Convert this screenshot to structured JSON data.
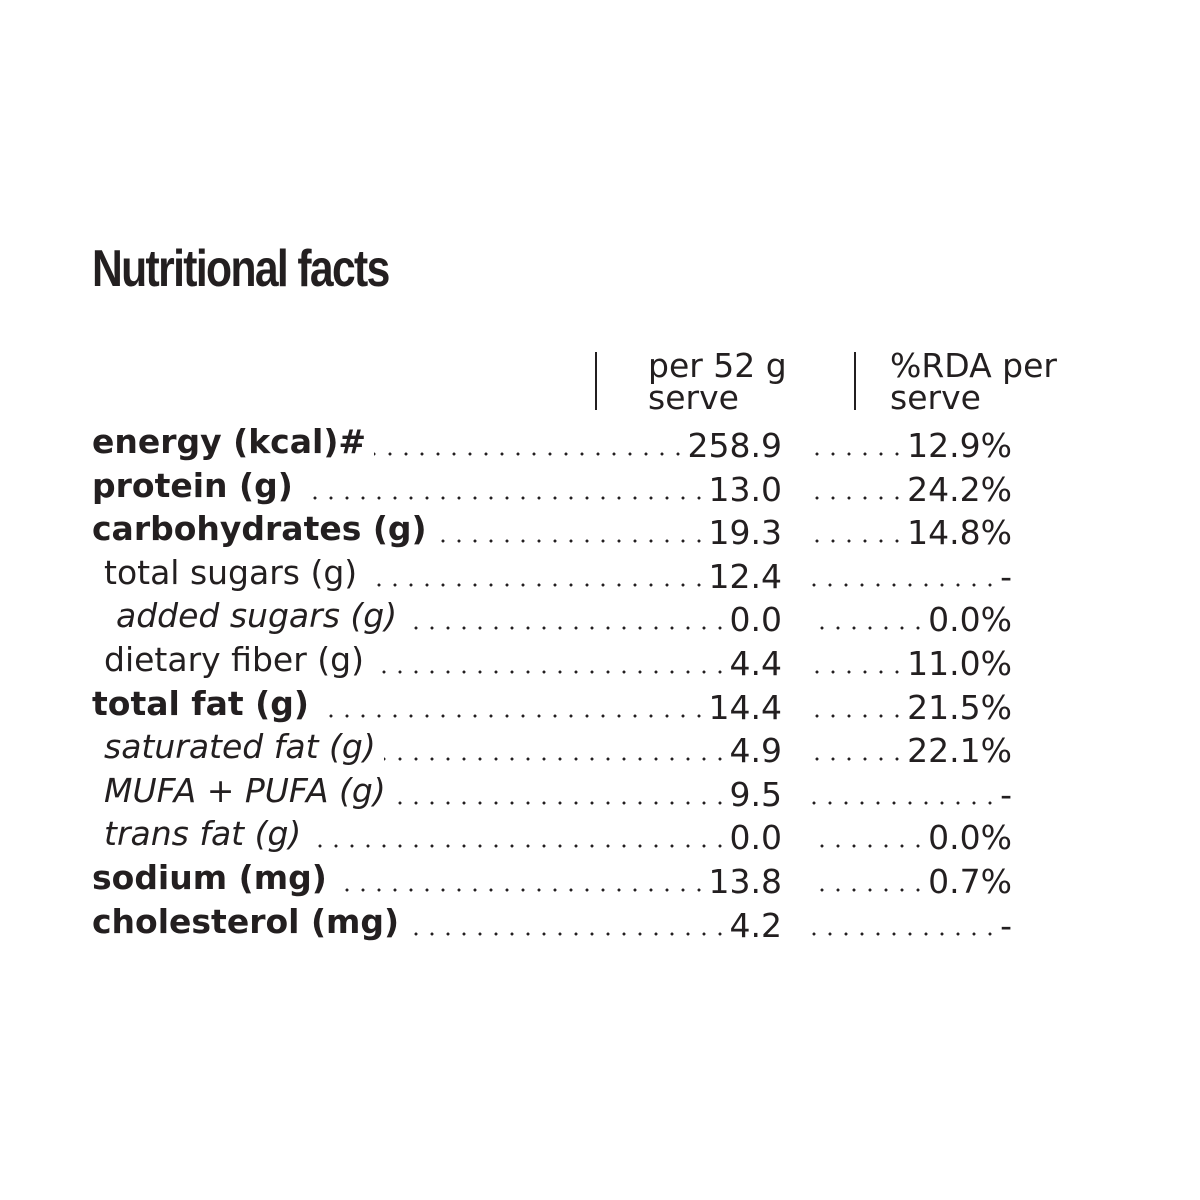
{
  "title": "Nutritional facts",
  "columns": {
    "per_serve_line1": "per 52 g",
    "per_serve_line2": "serve",
    "rda_line1": "%RDA per",
    "rda_line2": "serve"
  },
  "rows": [
    {
      "label": "energy (kcal)#",
      "style": "bold",
      "level": 0,
      "per_serve": "258.9",
      "rda": "12.9%"
    },
    {
      "label": "protein (g)",
      "style": "bold",
      "level": 0,
      "per_serve": "13.0",
      "rda": "24.2%"
    },
    {
      "label": "carbohydrates (g)",
      "style": "bold",
      "level": 0,
      "per_serve": "19.3",
      "rda": "14.8%"
    },
    {
      "label": "total sugars (g)",
      "style": "normal",
      "level": 1,
      "per_serve": "12.4",
      "rda": "-"
    },
    {
      "label": "added sugars (g)",
      "style": "italic",
      "level": 2,
      "per_serve": "0.0",
      "rda": "0.0%"
    },
    {
      "label": "dietary fiber (g)",
      "style": "normal",
      "level": 1,
      "per_serve": "4.4",
      "rda": "11.0%"
    },
    {
      "label": "total fat (g)",
      "style": "bold",
      "level": 0,
      "per_serve": "14.4",
      "rda": "21.5%"
    },
    {
      "label": "saturated fat (g)",
      "style": "italic",
      "level": 1,
      "per_serve": "4.9",
      "rda": "22.1%"
    },
    {
      "label": "MUFA + PUFA (g)",
      "style": "italic",
      "level": 1,
      "per_serve": "9.5",
      "rda": "-"
    },
    {
      "label": "trans fat (g)",
      "style": "italic",
      "level": 1,
      "per_serve": "0.0",
      "rda": "0.0%"
    },
    {
      "label": "sodium (mg)",
      "style": "bold",
      "level": 0,
      "per_serve": "13.8",
      "rda": "0.7%"
    },
    {
      "label": "cholesterol (mg)",
      "style": "bold",
      "level": 0,
      "per_serve": "4.2",
      "rda": "-"
    }
  ]
}
